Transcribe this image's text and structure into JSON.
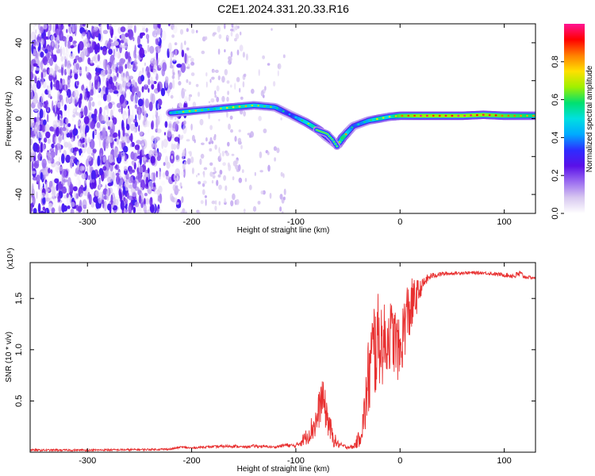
{
  "title": "C2E1.2024.331.20.33.R16",
  "chart_data": [
    {
      "type": "heatmap",
      "xlabel": "Height of straight line (km)",
      "ylabel": "Frequency (Hz)",
      "xlim": [
        -355,
        130
      ],
      "ylim": [
        -50,
        50
      ],
      "xticks": [
        -300,
        -200,
        -100,
        0,
        100
      ],
      "yticks": [
        -40,
        -20,
        0,
        20,
        40
      ],
      "colorbar": {
        "label": "Normalized spectral amplitude",
        "range": [
          0,
          1
        ],
        "ticks": [
          "0.0",
          "0.2",
          "0.4",
          "0.6",
          "0.8"
        ],
        "stops": [
          "#ffffff",
          "#d8c8f0",
          "#9b6cf0",
          "#5a10e8",
          "#2e2cff",
          "#00aaff",
          "#00e0e0",
          "#00e070",
          "#a0f000",
          "#ffe000",
          "#ff8000",
          "#ff0000",
          "#ff1493"
        ]
      },
      "ridge": {
        "x": [
          -220,
          -200,
          -180,
          -160,
          -140,
          -120,
          -105,
          -90,
          -78,
          -70,
          -60,
          -55,
          -45,
          -30,
          -20,
          -10,
          0,
          20,
          40,
          60,
          80,
          100,
          120,
          130
        ],
        "y": [
          3,
          4,
          5,
          6,
          7,
          6,
          2,
          -2,
          -6,
          -10,
          -14,
          -10,
          -4,
          -1,
          0,
          1,
          1.5,
          1.5,
          1.5,
          1.5,
          2,
          1.5,
          1.5,
          1.5
        ],
        "peak_amplitude": [
          0.55,
          0.75,
          0.6,
          0.8,
          0.7,
          0.6,
          0.45,
          0.7,
          0.8,
          0.5,
          0.6,
          0.85,
          0.5,
          0.6,
          0.8,
          0.7,
          0.9,
          0.95,
          0.95,
          0.95,
          0.95,
          0.9,
          0.85,
          0.8
        ]
      },
      "branch": {
        "x": [
          -80,
          -70,
          -65,
          -60
        ],
        "y": [
          -6,
          -8,
          -11,
          -15
        ]
      }
    },
    {
      "type": "line",
      "xlabel": "Height of straight line (km)",
      "ylabel": "SNR (10 * v/v)",
      "y_multiplier": "(x10⁴)",
      "xlim": [
        -355,
        130
      ],
      "ylim": [
        0,
        1.85
      ],
      "xticks": [
        -300,
        -200,
        -100,
        0,
        100
      ],
      "yticks": [
        0.5,
        1.0,
        1.5
      ],
      "ytick_labels": [
        "0.5",
        "1.0",
        "1.5"
      ],
      "color": "#e83030",
      "series": [
        {
          "x": [
            -355,
            -300,
            -250,
            -220,
            -210,
            -200,
            -190,
            -160,
            -150,
            -140,
            -120,
            -110,
            -100,
            -90,
            -80,
            -75,
            -70,
            -65,
            -60,
            -55,
            -50,
            -45,
            -40,
            -35,
            -30,
            -25,
            -20,
            -15,
            -10,
            -5,
            0,
            5,
            10,
            15,
            20,
            25,
            30,
            40,
            60,
            80,
            100,
            110,
            115,
            120,
            130
          ],
          "y": [
            0.02,
            0.02,
            0.025,
            0.03,
            0.05,
            0.04,
            0.05,
            0.06,
            0.05,
            0.06,
            0.05,
            0.07,
            0.06,
            0.15,
            0.3,
            0.55,
            0.35,
            0.15,
            0.08,
            0.06,
            0.05,
            0.05,
            0.12,
            0.3,
            0.75,
            1.0,
            1.1,
            1.05,
            1.15,
            1.1,
            0.95,
            1.3,
            1.4,
            1.5,
            1.6,
            1.68,
            1.72,
            1.74,
            1.75,
            1.75,
            1.73,
            1.72,
            1.74,
            1.71,
            1.7
          ]
        }
      ],
      "noise_amplitude": [
        0.01,
        0.01,
        0.01,
        0.01,
        0.01,
        0.01,
        0.01,
        0.015,
        0.01,
        0.015,
        0.01,
        0.02,
        0.02,
        0.08,
        0.18,
        0.2,
        0.18,
        0.1,
        0.04,
        0.02,
        0.02,
        0.02,
        0.08,
        0.2,
        0.45,
        0.55,
        0.45,
        0.4,
        0.35,
        0.35,
        0.3,
        0.35,
        0.3,
        0.2,
        0.08,
        0.05,
        0.03,
        0.02,
        0.015,
        0.015,
        0.02,
        0.03,
        0.04,
        0.02,
        0.01
      ]
    }
  ]
}
